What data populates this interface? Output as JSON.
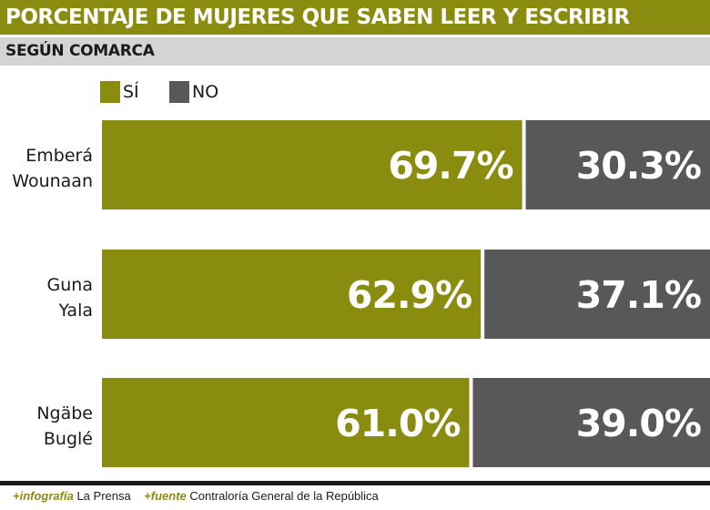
{
  "title": "PORCENTAJE DE MUJERES QUE SABEN LEER Y ESCRIBIR",
  "subtitle": "SEGÚN COMARCA",
  "legend": [
    {
      "label": "SÍ",
      "color": "#8a8c10"
    },
    {
      "label": "NO",
      "color": "#58585a"
    }
  ],
  "chart_data": {
    "type": "bar",
    "orientation": "horizontal",
    "stacked": true,
    "title": "PORCENTAJE DE MUJERES QUE SABEN LEER Y ESCRIBIR",
    "subtitle": "SEGÚN COMARCA",
    "categories": [
      [
        "Emberá",
        "Wounaan"
      ],
      [
        "Guna",
        "Yala"
      ],
      [
        "Ngäbe",
        "Buglé"
      ]
    ],
    "series": [
      {
        "name": "SÍ",
        "color": "#8a8c10",
        "values": [
          69.7,
          62.9,
          61.0
        ],
        "labels": [
          "69.7%",
          "62.9%",
          "61.0%"
        ]
      },
      {
        "name": "NO",
        "color": "#58585a",
        "values": [
          30.3,
          37.1,
          39.0
        ],
        "labels": [
          "30.3%",
          "37.1%",
          "39.0%"
        ]
      }
    ],
    "xlim": [
      0,
      100
    ],
    "xlabel": "",
    "ylabel": "",
    "legend_position": "top-left",
    "grid": false
  },
  "footer": {
    "infografia_key": "+infografía",
    "infografia_value": "La Prensa",
    "fuente_key": "+fuente",
    "fuente_value": "Contraloría General de la República"
  }
}
